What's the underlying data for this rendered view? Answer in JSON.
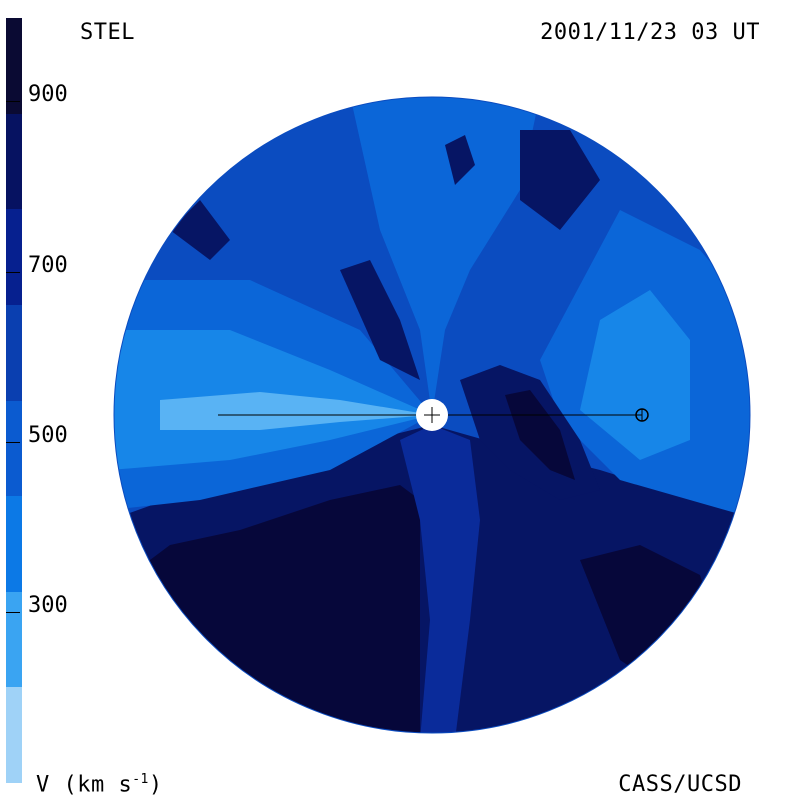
{
  "header": {
    "observatory": "STEL",
    "datetime": "2001/11/23 03 UT"
  },
  "footer": {
    "unit_label": "V (km s",
    "unit_exponent": "-1",
    "unit_close": ")",
    "credit": "CASS/UCSD"
  },
  "colorbar": {
    "ticks": [
      "900",
      "700",
      "500",
      "300"
    ],
    "colors": [
      "#0a0a33",
      "#061261",
      "#06208f",
      "#0a3fb0",
      "#0b5bd0",
      "#0c79e6",
      "#3aa4f2",
      "#9fd2f7"
    ]
  },
  "map": {
    "colors": {
      "darkest": "#06073a",
      "dark": "#061564",
      "mid_dark": "#0a2b9a",
      "mid": "#0b4cc0",
      "light": "#0b66d8",
      "lighter": "#1786e8",
      "lightest": "#59b3f4"
    }
  }
}
